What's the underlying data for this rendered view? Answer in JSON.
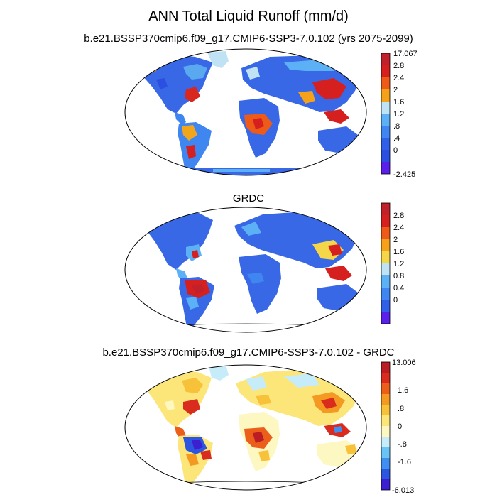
{
  "figure": {
    "title": "ANN Total Liquid Runoff (mm/d)"
  },
  "panels": [
    {
      "title": "b.e21.BSSP370cmip6.f09_g17.CMIP6-SSP3-7.0.102 (yrs 2075-2099)",
      "colorbar": {
        "colors": [
          "#5a1fea",
          "#3060e8",
          "#3f86f0",
          "#5cb0f5",
          "#bfe2f5",
          "#f5d648",
          "#f5a21a",
          "#ee5a18",
          "#d61f1f",
          "#c0212a"
        ],
        "labels": [
          "17.067",
          "2.8",
          "2.4",
          "2",
          "1.6",
          "1.2",
          ".8",
          ".4",
          "0",
          "-2.425"
        ]
      }
    },
    {
      "title": "GRDC",
      "colorbar": {
        "colors": [
          "#5a1fea",
          "#3060e8",
          "#3f86f0",
          "#5cb0f5",
          "#bfe2f5",
          "#f5d648",
          "#f5a21a",
          "#ee5a18",
          "#d61f1f",
          "#c0212a"
        ],
        "labels": [
          "2.8",
          "2.4",
          "2",
          "1.6",
          "1.2",
          "0.8",
          "0.4",
          "0"
        ]
      }
    },
    {
      "title": "b.e21.BSSP370cmip6.f09_g17.CMIP6-SSP3-7.0.102 - GRDC",
      "colorbar": {
        "colors": [
          "#3b1fd0",
          "#2c56e0",
          "#3f8ef0",
          "#69c4f5",
          "#c6ecfa",
          "#fdf7c2",
          "#fce67a",
          "#f8c13a",
          "#f49a22",
          "#ec5f1b",
          "#d92c1e",
          "#bb1d24"
        ],
        "labels": [
          "13.006",
          "1.6",
          ".8",
          "0",
          "-.8",
          "-1.6",
          "-6.013"
        ]
      }
    }
  ]
}
